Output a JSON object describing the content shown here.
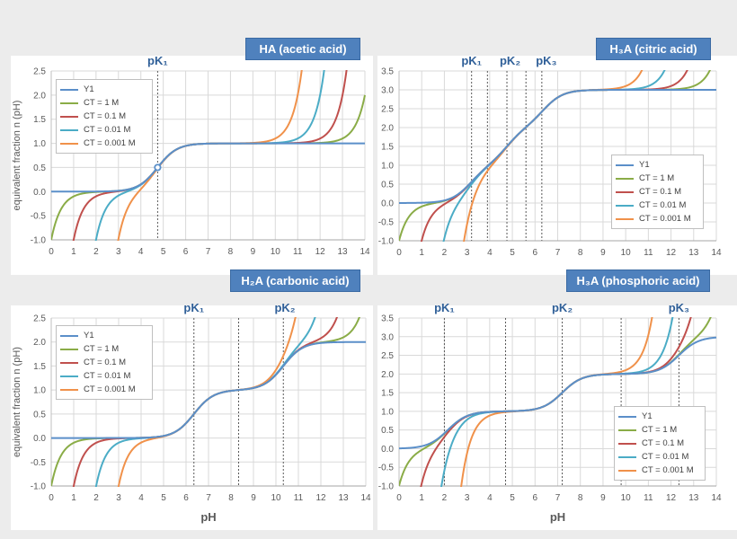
{
  "colors": {
    "Y1": "#5b8fc9",
    "CT = 1 M": "#8aac47",
    "CT = 0.1 M": "#c0504d",
    "CT = 0.01 M": "#4bacc6",
    "CT = 0.001 M": "#f0914a",
    "title_bg": "#4f81bd",
    "pk_label": "#2f5f98"
  },
  "chart_data": [
    {
      "type": "line",
      "title": "HA (acetic acid)",
      "pKa": [
        4.75
      ],
      "CT": [
        1,
        0.1,
        0.01,
        0.001
      ],
      "series": [
        "Y1",
        "CT = 1 M",
        "CT = 0.1 M",
        "CT = 0.01 M",
        "CT = 0.001 M"
      ],
      "pK_markers": [
        {
          "label": "pK₁",
          "pH": 4.75
        }
      ],
      "dashed_lines": [
        4.75
      ],
      "marker_point": [
        4.75,
        0.5
      ],
      "xlim": [
        0,
        14
      ],
      "ylim": [
        -1,
        2.5
      ],
      "xticks": [
        "0",
        "1",
        "2",
        "3",
        "4",
        "5",
        "6",
        "7",
        "8",
        "9",
        "10",
        "11",
        "12",
        "13",
        "14"
      ],
      "yticks": [
        "-1.0",
        "-0.5",
        "0.0",
        "0.5",
        "1.0",
        "1.5",
        "2.0",
        "2.5"
      ],
      "xlabel": "",
      "ylabel": "equivalent fraction  n (pH)",
      "legend": "top-left",
      "grid": true
    },
    {
      "type": "line",
      "title": "H₃A (citric acid)",
      "pKa": [
        3.13,
        4.76,
        6.4
      ],
      "CT": [
        1,
        0.1,
        0.01,
        0.001
      ],
      "series": [
        "Y1",
        "CT = 1 M",
        "CT = 0.1 M",
        "CT = 0.01 M",
        "CT = 0.001 M"
      ],
      "pK_markers": [
        {
          "label": "pK₁",
          "pH": 3.2
        },
        {
          "label": "pK₂",
          "pH": 4.9
        },
        {
          "label": "pK₃",
          "pH": 6.5
        }
      ],
      "dashed_lines": [
        3.2,
        3.9,
        4.76,
        5.6,
        6.3
      ],
      "xlim": [
        0,
        14
      ],
      "ylim": [
        -1,
        3.5
      ],
      "xticks": [
        "0",
        "1",
        "2",
        "3",
        "4",
        "5",
        "6",
        "7",
        "8",
        "9",
        "10",
        "11",
        "12",
        "13",
        "14"
      ],
      "yticks": [
        "-1.0",
        "-0.5",
        "0.0",
        "0.5",
        "1.0",
        "1.5",
        "2.0",
        "2.5",
        "3.0",
        "3.5"
      ],
      "xlabel": "",
      "ylabel": "",
      "legend": "center-right",
      "grid": true
    },
    {
      "type": "line",
      "title": "H₂A (carbonic acid)",
      "pKa": [
        6.35,
        10.33
      ],
      "CT": [
        1,
        0.1,
        0.01,
        0.001
      ],
      "series": [
        "Y1",
        "CT = 1 M",
        "CT = 0.1 M",
        "CT = 0.01 M",
        "CT = 0.001 M"
      ],
      "pK_markers": [
        {
          "label": "pK₁",
          "pH": 6.35
        },
        {
          "label": "pK₂",
          "pH": 10.4
        }
      ],
      "dashed_lines": [
        6.35,
        8.34,
        10.33
      ],
      "xlim": [
        0,
        14
      ],
      "ylim": [
        -1,
        2.5
      ],
      "xticks": [
        "0",
        "1",
        "2",
        "3",
        "4",
        "5",
        "6",
        "7",
        "8",
        "9",
        "10",
        "11",
        "12",
        "13",
        "14"
      ],
      "yticks": [
        "-1.0",
        "-0.5",
        "0.0",
        "0.5",
        "1.0",
        "1.5",
        "2.0",
        "2.5"
      ],
      "xlabel": "pH",
      "ylabel": "equivalent fraction  n (pH)",
      "legend": "top-left",
      "grid": true
    },
    {
      "type": "line",
      "title": "H₃A (phosphoric acid)",
      "pKa": [
        2.15,
        7.2,
        12.35
      ],
      "CT": [
        1,
        0.1,
        0.01,
        0.001
      ],
      "series": [
        "Y1",
        "CT = 1 M",
        "CT = 0.1 M",
        "CT = 0.01 M",
        "CT = 0.001 M"
      ],
      "pK_markers": [
        {
          "label": "pK₁",
          "pH": 2.0
        },
        {
          "label": "pK₂",
          "pH": 7.2
        },
        {
          "label": "pK₃",
          "pH": 12.35
        }
      ],
      "dashed_lines": [
        2.0,
        4.7,
        7.2,
        9.8,
        12.35
      ],
      "xlim": [
        0,
        14
      ],
      "ylim": [
        -1,
        3.5
      ],
      "xticks": [
        "0",
        "1",
        "2",
        "3",
        "4",
        "5",
        "6",
        "7",
        "8",
        "9",
        "10",
        "11",
        "12",
        "13",
        "14"
      ],
      "yticks": [
        "-1.0",
        "-0.5",
        "0.0",
        "0.5",
        "1.0",
        "1.5",
        "2.0",
        "2.5",
        "3.0",
        "3.5"
      ],
      "xlabel": "pH",
      "ylabel": "",
      "legend": "bottom-right",
      "grid": true
    }
  ]
}
